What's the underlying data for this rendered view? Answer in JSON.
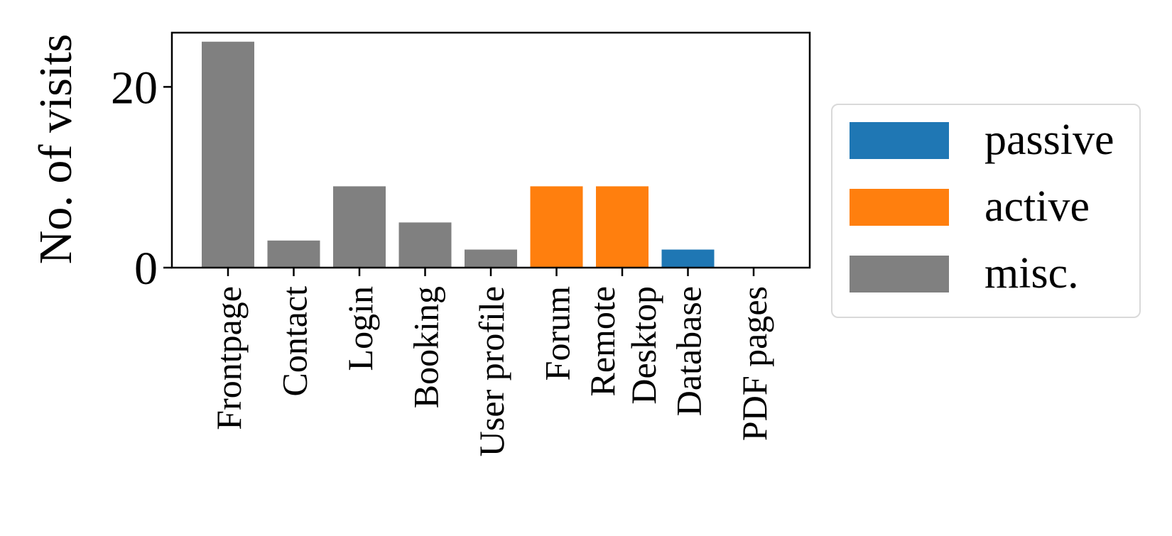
{
  "chart_data": {
    "type": "bar",
    "ylabel": "No. of visits",
    "xlabel": "",
    "ylim": [
      0,
      26
    ],
    "yticks": [
      0,
      20
    ],
    "ytick_labels": [
      "0",
      "20"
    ],
    "categories": [
      "Frontpage",
      "Contact",
      "Login",
      "Booking",
      "User profile",
      "Forum",
      "Remote\nDesktop",
      "Database",
      "PDF pages"
    ],
    "category_labels": [
      [
        "Frontpage"
      ],
      [
        "Contact"
      ],
      [
        "Login"
      ],
      [
        "Booking"
      ],
      [
        "User profile"
      ],
      [
        "Forum"
      ],
      [
        "Remote",
        "Desktop"
      ],
      [
        "Database"
      ],
      [
        "PDF pages"
      ]
    ],
    "values": [
      25,
      3,
      9,
      5,
      2,
      9,
      9,
      2,
      0
    ],
    "groups": [
      "misc.",
      "misc.",
      "misc.",
      "misc.",
      "misc.",
      "active",
      "active",
      "passive",
      "misc."
    ],
    "grid": false,
    "legend_position": "right",
    "legend": [
      {
        "name": "passive",
        "color": "#1f77b4"
      },
      {
        "name": "active",
        "color": "#ff7f0e"
      },
      {
        "name": "misc.",
        "color": "#808080"
      }
    ]
  }
}
